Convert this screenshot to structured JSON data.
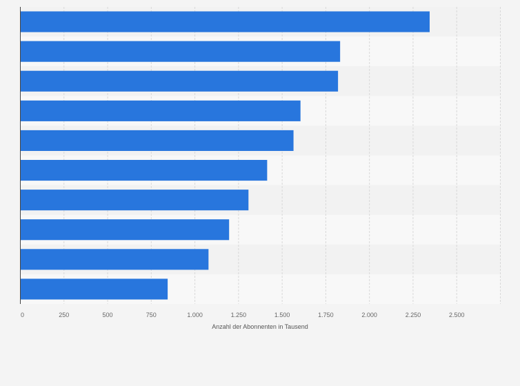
{
  "chart_data": {
    "type": "bar",
    "orientation": "horizontal",
    "categories": [
      "",
      "",
      "",
      "",
      "",
      "",
      "",
      "",
      "",
      ""
    ],
    "values": [
      2345,
      1832,
      1820,
      1605,
      1565,
      1414,
      1307,
      1196,
      1078,
      844
    ],
    "xlabel": "Anzahl der Abonnenten in Tausend",
    "xlim": [
      0,
      2750
    ],
    "xticks": [
      0,
      250,
      500,
      750,
      1000,
      1250,
      1500,
      1750,
      2000,
      2250,
      2500
    ],
    "xtick_labels": [
      "0",
      "250",
      "500",
      "750",
      "1.000",
      "1.250",
      "1.500",
      "1.750",
      "2.000",
      "2.250",
      "2.500"
    ],
    "grid": true,
    "colors": {
      "bar": "#2876dd",
      "row_even": "#f2f2f2",
      "row_odd": "#f8f8f8",
      "grid": "#d8d8d8"
    }
  }
}
